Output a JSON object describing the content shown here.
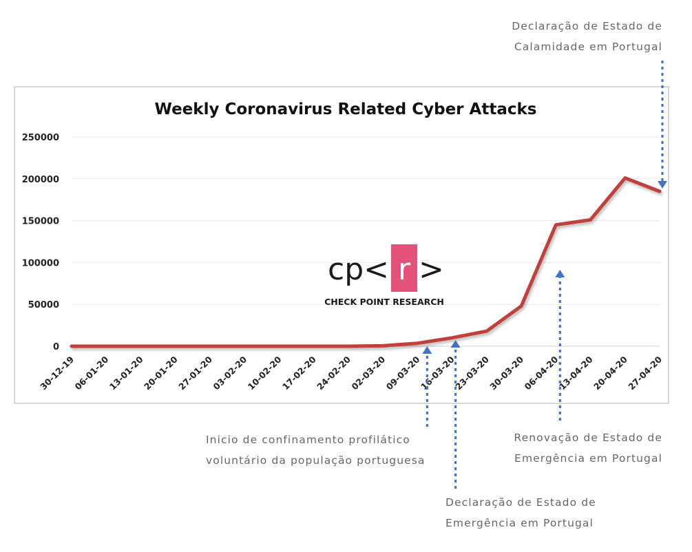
{
  "chart_data": {
    "type": "line",
    "title": "Weekly Coronavirus Related Cyber Attacks",
    "xlabel": "",
    "ylabel": "",
    "categories": [
      "30-12-19",
      "06-01-20",
      "13-01-20",
      "20-01-20",
      "27-01-20",
      "03-02-20",
      "10-02-20",
      "17-02-20",
      "24-02-20",
      "02-03-20",
      "09-03-20",
      "16-03-20",
      "23-03-20",
      "30-03-20",
      "06-04-20",
      "13-04-20",
      "20-04-20",
      "27-04-20"
    ],
    "series": [
      {
        "values": [
          0,
          0,
          0,
          0,
          0,
          0,
          0,
          0,
          0,
          500,
          3500,
          10000,
          18000,
          48000,
          145000,
          151000,
          201000,
          185000
        ],
        "color": "#c0413b"
      }
    ],
    "ylim": [
      0,
      250000
    ],
    "yticks": [
      "0",
      "50000",
      "100000",
      "150000",
      "200000",
      "250000"
    ],
    "grid": true,
    "legend": "none"
  },
  "logo": {
    "cp_text": "cp<",
    "r_text": "r",
    "close_text": ">",
    "subtitle": "CHECK POINT RESEARCH",
    "accent_color": "#e4527a"
  },
  "annotations": [
    {
      "lines": [
        "Declaração de Estado de",
        "Calamidade em Portugal"
      ],
      "category": "27-04-20"
    },
    {
      "lines": [
        "Inicio de confinamento profilático",
        "voluntário da população portuguesa"
      ],
      "category": "09-03-20"
    },
    {
      "lines": [
        "Declaração de Estado de",
        "Emergência em Portugal"
      ],
      "category": "16-03-20"
    },
    {
      "lines": [
        "Renovação de Estado de",
        "Emergência em Portugal"
      ],
      "category": "06-04-20"
    }
  ],
  "arrow_color": "#4472c4"
}
